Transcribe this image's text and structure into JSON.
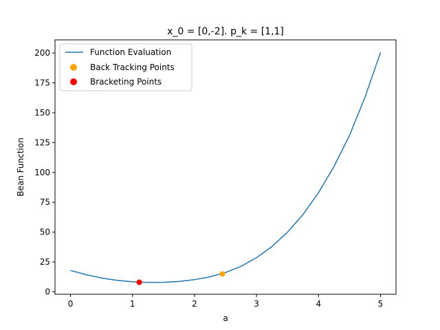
{
  "chart_data": {
    "type": "line",
    "title": "x_0 = [0,-2]. p_k = [1,1]",
    "xlabel": "a",
    "ylabel": "Bean Function",
    "xlim": [
      -0.25,
      5.25
    ],
    "ylim": [
      -2,
      211
    ],
    "xticks": [
      0,
      1,
      2,
      3,
      4,
      5
    ],
    "yticks": [
      0,
      25,
      50,
      75,
      100,
      125,
      150,
      175,
      200
    ],
    "grid": false,
    "legend_position": "top-left",
    "series": [
      {
        "name": "Function Evaluation",
        "kind": "line",
        "color": "#1f77b4",
        "x": [
          0,
          0.25,
          0.5,
          0.75,
          1.0,
          1.25,
          1.5,
          1.75,
          2.0,
          2.25,
          2.5,
          2.75,
          3.0,
          3.25,
          3.5,
          3.75,
          4.0,
          4.25,
          4.5,
          4.75,
          5.0
        ],
        "y": [
          18.0,
          14.4,
          11.6,
          9.6,
          8.4,
          7.9,
          8.0,
          8.7,
          10.2,
          12.6,
          16.2,
          21.4,
          28.6,
          38.0,
          50.0,
          64.8,
          83.0,
          105.0,
          131.0,
          163.0,
          200.5
        ]
      },
      {
        "name": "Back Tracking Points",
        "kind": "scatter",
        "color": "#ffa500",
        "x": [
          1.11,
          2.45
        ],
        "y": [
          8.0,
          15.0
        ]
      },
      {
        "name": "Bracketing Points",
        "kind": "scatter",
        "color": "#ff0000",
        "x": [
          1.11
        ],
        "y": [
          8.0
        ]
      }
    ]
  }
}
